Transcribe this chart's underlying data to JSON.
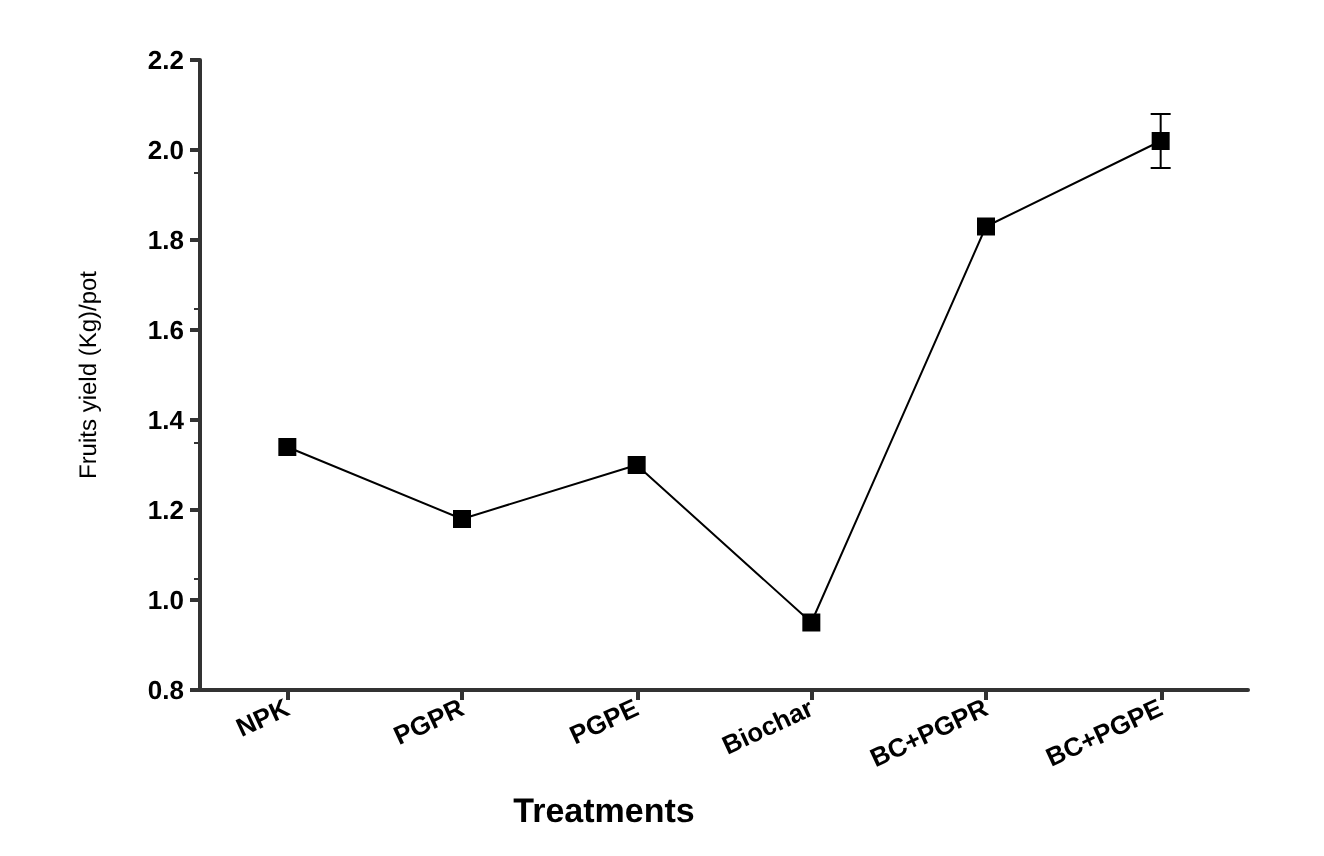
{
  "chart_data": {
    "type": "line",
    "xlabel": "Treatments",
    "ylabel": "Fruits yield (Kg)/pot",
    "categories": [
      "NPK",
      "PGPR",
      "PGPE",
      "Biochar",
      "BC+PGPR",
      "BC+PGPE"
    ],
    "series": [
      {
        "color": "#000000",
        "values": [
          1.34,
          1.18,
          1.3,
          0.95,
          1.83,
          2.02
        ],
        "errors": [
          null,
          null,
          null,
          null,
          null,
          0.06
        ]
      }
    ],
    "ylim": [
      0.8,
      2.2
    ],
    "yticks": [
      0.8,
      {
        "value": 1,
        "label": "1.0"
      },
      1.2,
      1.4,
      1.6,
      1.8,
      {
        "value": 2,
        "label": "2.0"
      },
      2.2
    ],
    "grid": false,
    "marker": "square",
    "line_style": "solid"
  }
}
